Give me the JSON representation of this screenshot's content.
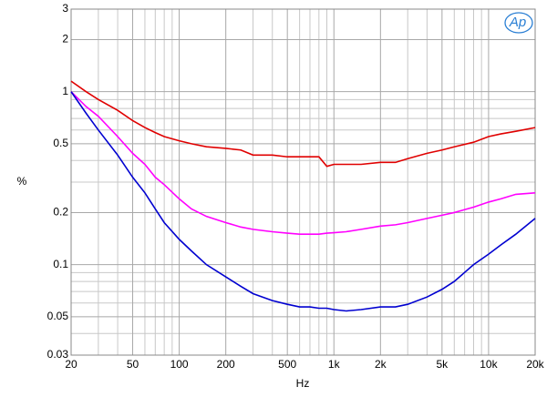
{
  "chart_data": {
    "type": "line",
    "logo": "Ap",
    "x_label": "Hz",
    "y_label": "%",
    "x": [
      20,
      25,
      30,
      40,
      50,
      60,
      70,
      80,
      100,
      120,
      150,
      200,
      250,
      300,
      400,
      500,
      600,
      700,
      800,
      900,
      1000,
      1200,
      1500,
      2000,
      2500,
      3000,
      4000,
      5000,
      6000,
      8000,
      10000,
      12000,
      15000,
      20000
    ],
    "series": [
      {
        "color": "#e00000",
        "values": [
          1.15,
          1.0,
          0.9,
          0.78,
          0.68,
          0.62,
          0.58,
          0.55,
          0.52,
          0.5,
          0.48,
          0.47,
          0.46,
          0.43,
          0.43,
          0.42,
          0.42,
          0.42,
          0.42,
          0.37,
          0.38,
          0.38,
          0.38,
          0.39,
          0.39,
          0.41,
          0.44,
          0.46,
          0.48,
          0.51,
          0.55,
          0.57,
          0.59,
          0.62
        ]
      },
      {
        "color": "#ff00ff",
        "values": [
          1.0,
          0.82,
          0.72,
          0.55,
          0.44,
          0.38,
          0.32,
          0.29,
          0.24,
          0.21,
          0.19,
          0.175,
          0.165,
          0.16,
          0.155,
          0.152,
          0.15,
          0.15,
          0.15,
          0.152,
          0.153,
          0.155,
          0.16,
          0.167,
          0.17,
          0.175,
          0.185,
          0.193,
          0.2,
          0.215,
          0.23,
          0.24,
          0.255,
          0.26
        ]
      },
      {
        "color": "#0000d0",
        "values": [
          1.0,
          0.75,
          0.6,
          0.43,
          0.32,
          0.26,
          0.21,
          0.175,
          0.14,
          0.12,
          0.1,
          0.085,
          0.075,
          0.068,
          0.062,
          0.059,
          0.057,
          0.057,
          0.056,
          0.056,
          0.055,
          0.054,
          0.055,
          0.057,
          0.057,
          0.059,
          0.065,
          0.072,
          0.08,
          0.1,
          0.115,
          0.13,
          0.15,
          0.185
        ]
      }
    ],
    "xlog": true,
    "ylog": true,
    "xlim": [
      20,
      20000
    ],
    "ylim": [
      0.03,
      3
    ],
    "xticks": [
      20,
      50,
      100,
      200,
      500,
      {
        "value": 1000,
        "label": "1k"
      },
      {
        "value": 2000,
        "label": "2k"
      },
      {
        "value": 5000,
        "label": "5k"
      },
      {
        "value": 10000,
        "label": "10k"
      },
      {
        "value": 20000,
        "label": "20k"
      }
    ],
    "yticks": [
      0.03,
      0.05,
      0.1,
      0.2,
      0.5,
      1,
      2,
      3
    ],
    "x_minor_grid": [
      30,
      40,
      60,
      70,
      80,
      90,
      300,
      400,
      600,
      700,
      800,
      900,
      3000,
      4000,
      6000,
      7000,
      8000,
      9000
    ],
    "y_minor_grid": [
      0.04,
      0.06,
      0.07,
      0.08,
      0.09,
      0.3,
      0.4,
      0.6,
      0.7,
      0.8,
      0.9
    ],
    "grid": true
  }
}
